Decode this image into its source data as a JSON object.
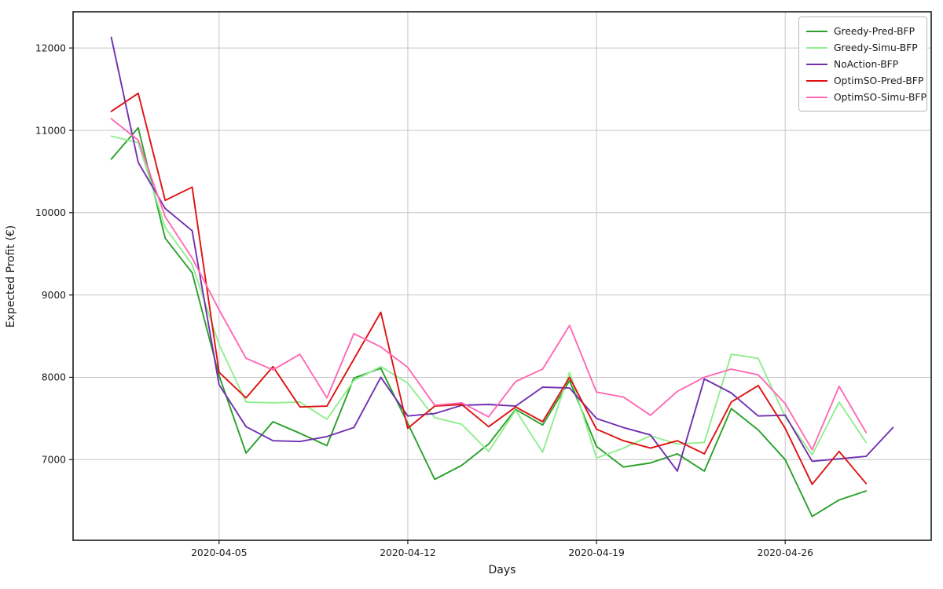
{
  "figure": {
    "background": "#ffffff",
    "plot_border_color": "#1a1a1a",
    "grid_color": "#c6c6c6",
    "text_color": "#1a1a1a"
  },
  "chart_data": {
    "type": "line",
    "title": "",
    "xlabel": "Days",
    "ylabel": "Expected Profit (€)",
    "grid": true,
    "legend_position": "upper right",
    "ylim": [
      6020,
      12440
    ],
    "y_ticks": [
      7000,
      8000,
      9000,
      10000,
      11000,
      12000
    ],
    "x_tick_positions": [
      4,
      11,
      18,
      25
    ],
    "x_tick_labels": [
      "2020-04-05",
      "2020-04-12",
      "2020-04-19",
      "2020-04-26"
    ],
    "x_dates_start": "2020-04-01",
    "x_dates_step_days": 1,
    "series": [
      {
        "name": "Greedy-Pred-BFP",
        "color": "#2aa02a",
        "values": [
          10650,
          11030,
          9690,
          9270,
          8020,
          7080,
          7460,
          7320,
          7170,
          7990,
          8110,
          7440,
          6760,
          6930,
          7190,
          7610,
          7420,
          7960,
          7160,
          6910,
          6960,
          7070,
          6860,
          7620,
          7360,
          7000,
          6310,
          6510,
          6620
        ]
      },
      {
        "name": "Greedy-Simu-BFP",
        "color": "#90ee90",
        "values": [
          10930,
          10850,
          9820,
          9370,
          8400,
          7700,
          7690,
          7700,
          7490,
          7960,
          8130,
          7930,
          7510,
          7430,
          7100,
          7600,
          7090,
          8060,
          7020,
          7140,
          7290,
          7190,
          7210,
          8280,
          8230,
          7520,
          7060,
          7700,
          7210
        ]
      },
      {
        "name": "NoAction-BFP",
        "color": "#7130b0",
        "values": [
          12130,
          10610,
          10050,
          9780,
          7910,
          7400,
          7230,
          7220,
          7280,
          7390,
          8000,
          7530,
          7560,
          7660,
          7670,
          7650,
          7880,
          7870,
          7500,
          7390,
          7300,
          6860,
          7980,
          7810,
          7530,
          7540,
          6980,
          7010,
          7040,
          7390
        ]
      },
      {
        "name": "OptimSO-Pred-BFP",
        "color": "#df1111",
        "values": [
          11230,
          11450,
          10150,
          10310,
          8060,
          7750,
          8130,
          7640,
          7650,
          8220,
          8790,
          7380,
          7650,
          7670,
          7400,
          7640,
          7460,
          8000,
          7370,
          7230,
          7140,
          7230,
          7070,
          7700,
          7900,
          7380,
          6700,
          7100,
          6710
        ]
      },
      {
        "name": "OptimSO-Simu-BFP",
        "color": "#ff69b4",
        "values": [
          11140,
          10880,
          9950,
          9450,
          8820,
          8230,
          8090,
          8280,
          7750,
          8530,
          8370,
          8120,
          7660,
          7690,
          7520,
          7950,
          8100,
          8630,
          7820,
          7760,
          7540,
          7830,
          8000,
          8100,
          8030,
          7680,
          7120,
          7890,
          7330
        ]
      }
    ]
  }
}
